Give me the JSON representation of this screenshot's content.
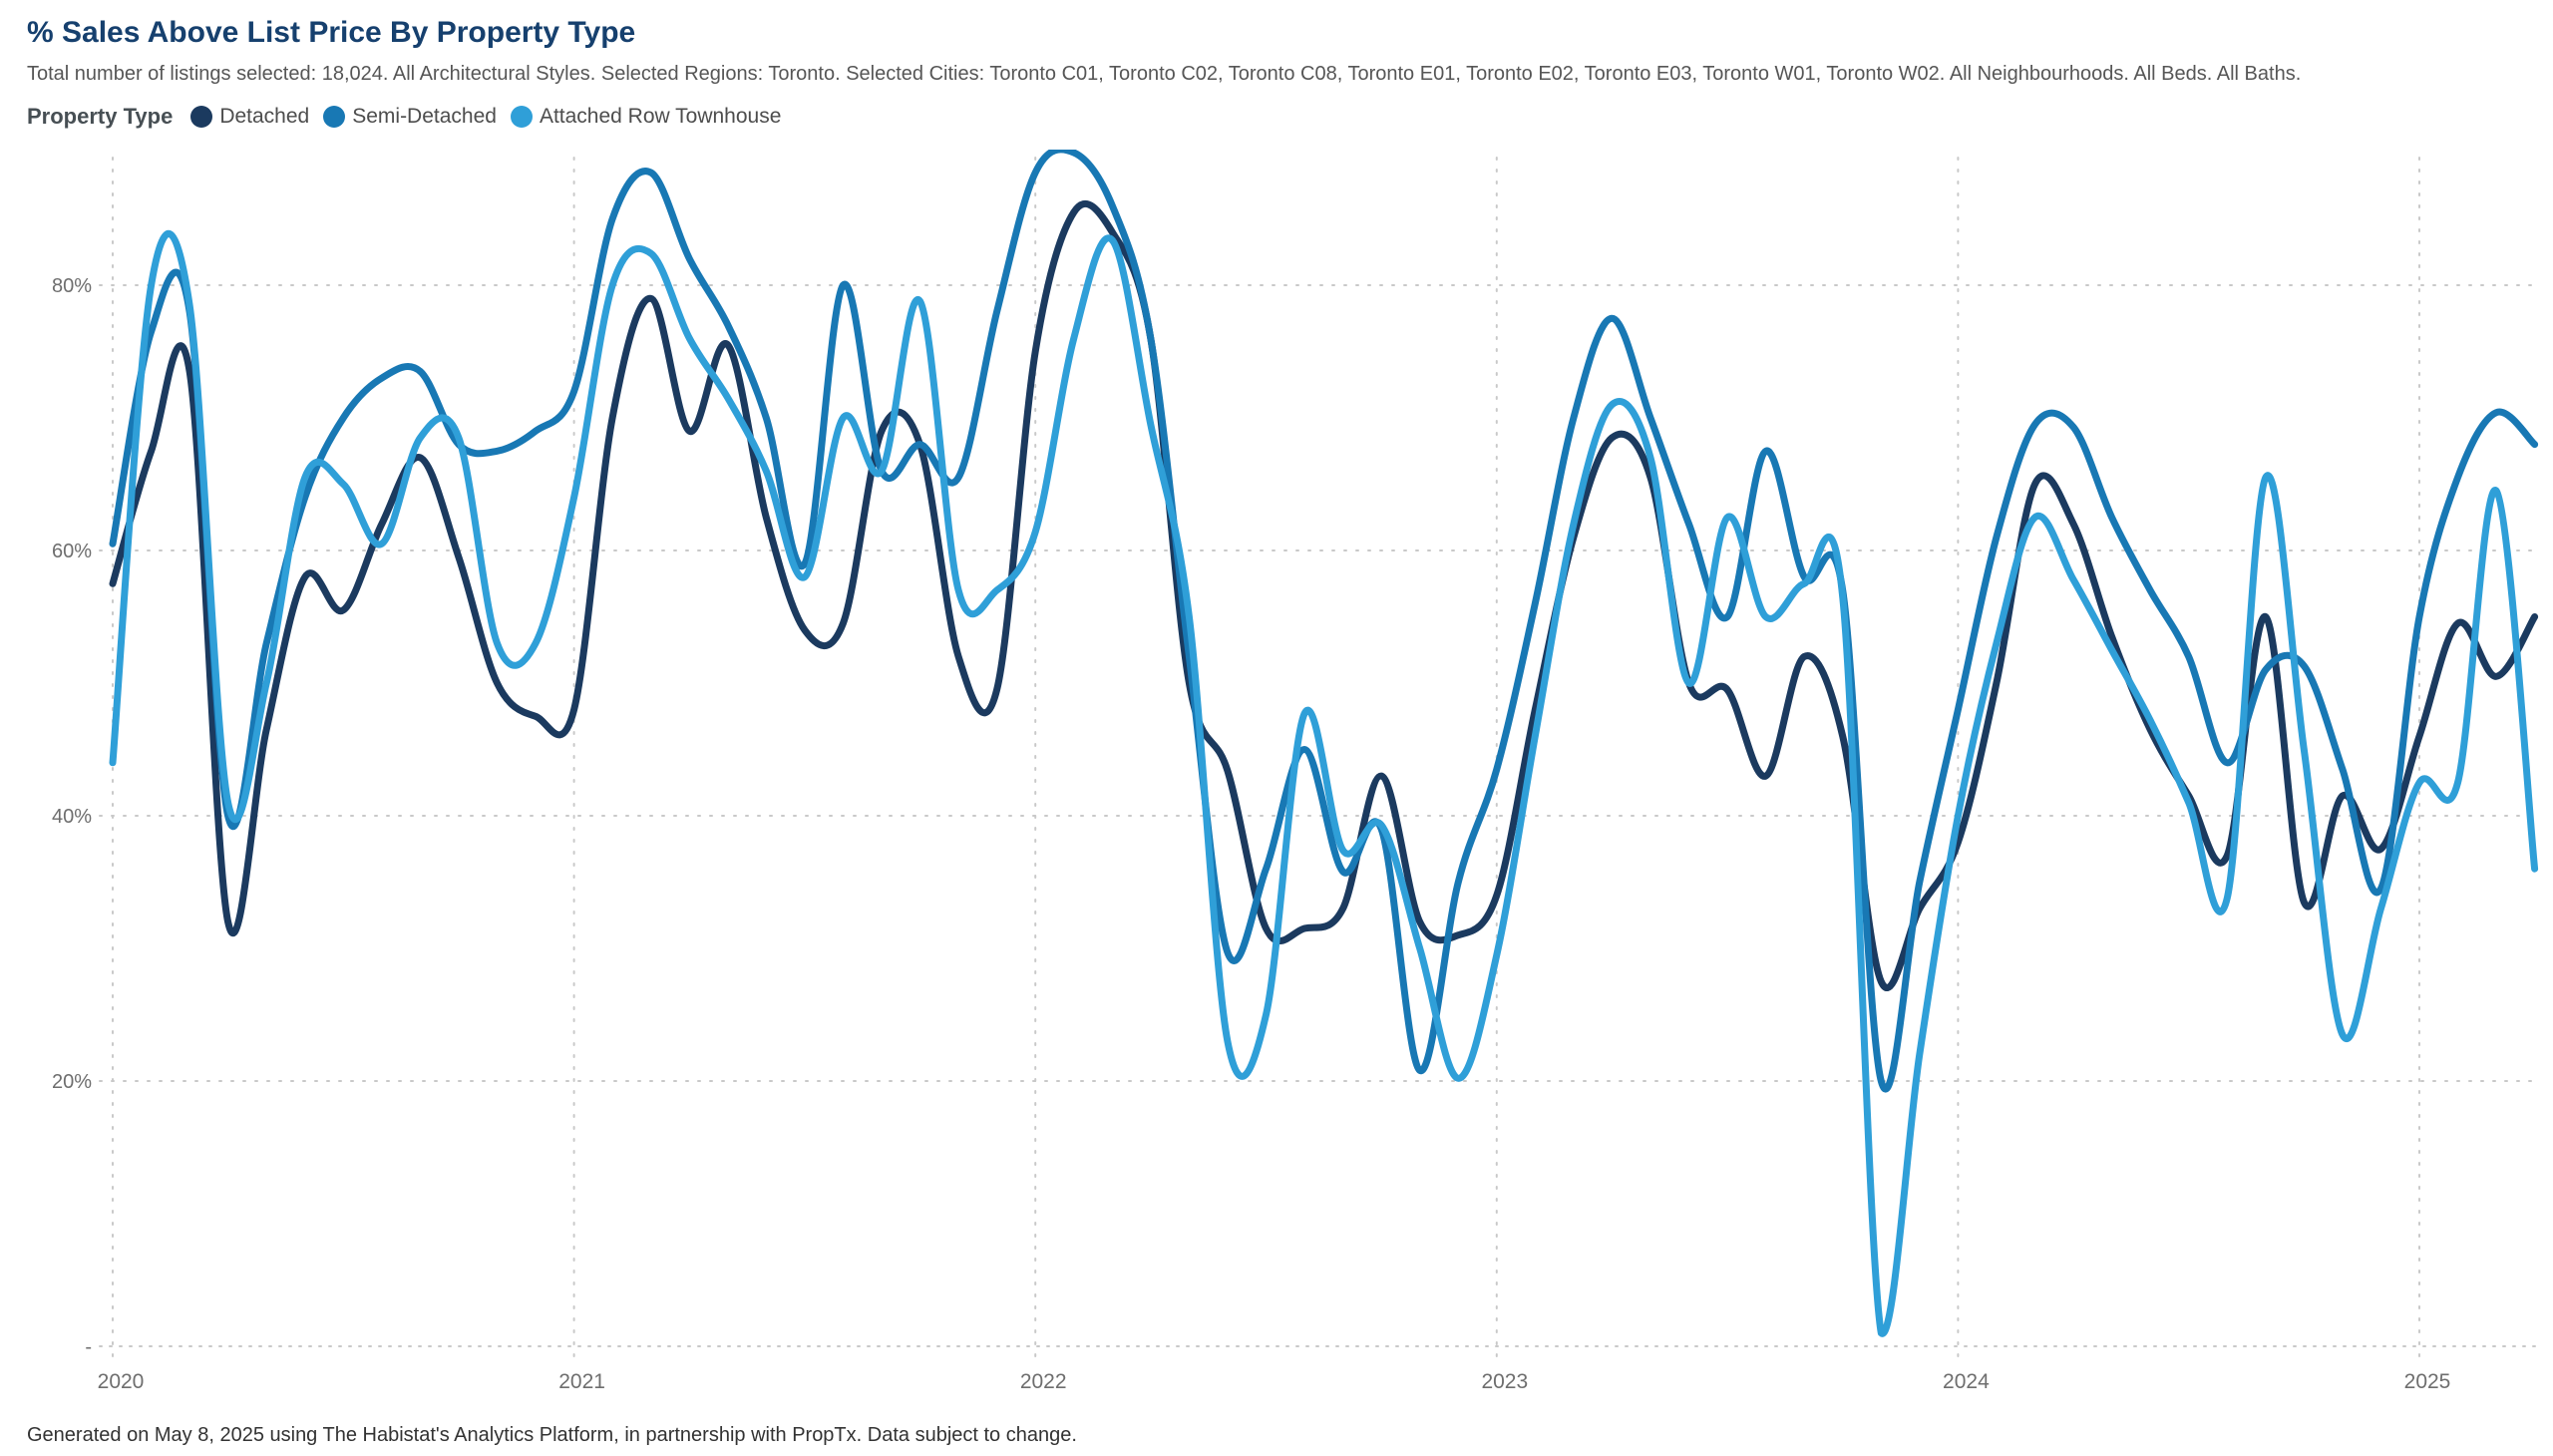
{
  "header": {
    "title": "% Sales Above List Price By Property Type",
    "subtitle": "Total number of listings selected: 18,024. All Architectural Styles. Selected Regions: Toronto. Selected Cities: Toronto C01, Toronto C02, Toronto C08, Toronto E01, Toronto E02, Toronto E03, Toronto W01, Toronto W02. All Neighbourhoods. All Beds. All Baths."
  },
  "legend": {
    "label": "Property Type",
    "items": [
      {
        "name": "Detached",
        "color": "#1b3a5f"
      },
      {
        "name": "Semi-Detached",
        "color": "#1878b4"
      },
      {
        "name": "Attached Row Townhouse",
        "color": "#2f9fd8"
      }
    ]
  },
  "footer": {
    "text": "Generated on May 8, 2025 using The Habistat's Analytics Platform, in partnership with PropTx. Data subject to change."
  },
  "chart_data": {
    "type": "line",
    "title": "% Sales Above List Price By Property Type",
    "x_start": "2020-01",
    "x_end": "2025-04",
    "x_tick_labels": [
      "2020",
      "2021",
      "2022",
      "2023",
      "2024",
      "2025"
    ],
    "y_ticks": [
      80,
      60,
      40,
      20
    ],
    "y_tick_labels": [
      "80%",
      "60%",
      "40%",
      "20%"
    ],
    "zero_label": "-",
    "ylim": [
      0,
      92
    ],
    "grid": "dotted",
    "legend_position": "top",
    "series": [
      {
        "name": "Detached",
        "color": "#1b3a5f",
        "values": [
          57.5,
          67.5,
          73.5,
          32,
          46.5,
          58,
          55.5,
          62,
          67,
          59.5,
          50,
          47.5,
          48,
          70,
          79,
          69,
          75.5,
          62.5,
          54,
          54.5,
          69,
          68,
          52,
          49.5,
          75,
          85.5,
          84,
          76,
          50,
          43.4,
          31.5,
          31.5,
          33,
          43,
          32,
          31,
          34,
          48,
          61,
          68.5,
          65.5,
          50,
          49.5,
          43,
          52,
          46,
          27.5,
          33,
          38,
          50,
          65,
          62,
          53.5,
          46.5,
          41.5,
          37,
          55,
          33.5,
          41.5,
          37.5,
          46,
          54.5,
          50.5,
          55
        ]
      },
      {
        "name": "Semi-Detached",
        "color": "#1878b4",
        "values": [
          60.5,
          76.5,
          78,
          40,
          53,
          64,
          70,
          73,
          73.5,
          68,
          67.5,
          69,
          72,
          85,
          88.5,
          82,
          77,
          70,
          59,
          80,
          66,
          68,
          65.5,
          78,
          88.5,
          90,
          86,
          76,
          52,
          29.7,
          36,
          45,
          35.8,
          39,
          20.8,
          35,
          43.5,
          56,
          70,
          77.5,
          70,
          62,
          55,
          67.5,
          58,
          57,
          20,
          35,
          48,
          61,
          69.5,
          69.3,
          62.5,
          57,
          52,
          44,
          51,
          51.3,
          43.5,
          34.5,
          55,
          65.5,
          70.4,
          68
        ]
      },
      {
        "name": "Attached Row Townhouse",
        "color": "#2f9fd8",
        "values": [
          44,
          80,
          78.5,
          41,
          50,
          65.5,
          65,
          60.5,
          68.5,
          68.5,
          53,
          53,
          64,
          80,
          82.4,
          76,
          71.5,
          66,
          58,
          70,
          66,
          78.8,
          57,
          57,
          61.4,
          76,
          83.4,
          69.5,
          55,
          23,
          25,
          47.7,
          37.4,
          39.3,
          30,
          20.2,
          29.5,
          46,
          62,
          71,
          67,
          50,
          62.5,
          55,
          57.5,
          56.5,
          1,
          22,
          40,
          53,
          62.5,
          57.8,
          52.5,
          47.2,
          41,
          33.8,
          65.5,
          45,
          23.5,
          33,
          42.5,
          42.5,
          64.5,
          36
        ]
      }
    ]
  }
}
